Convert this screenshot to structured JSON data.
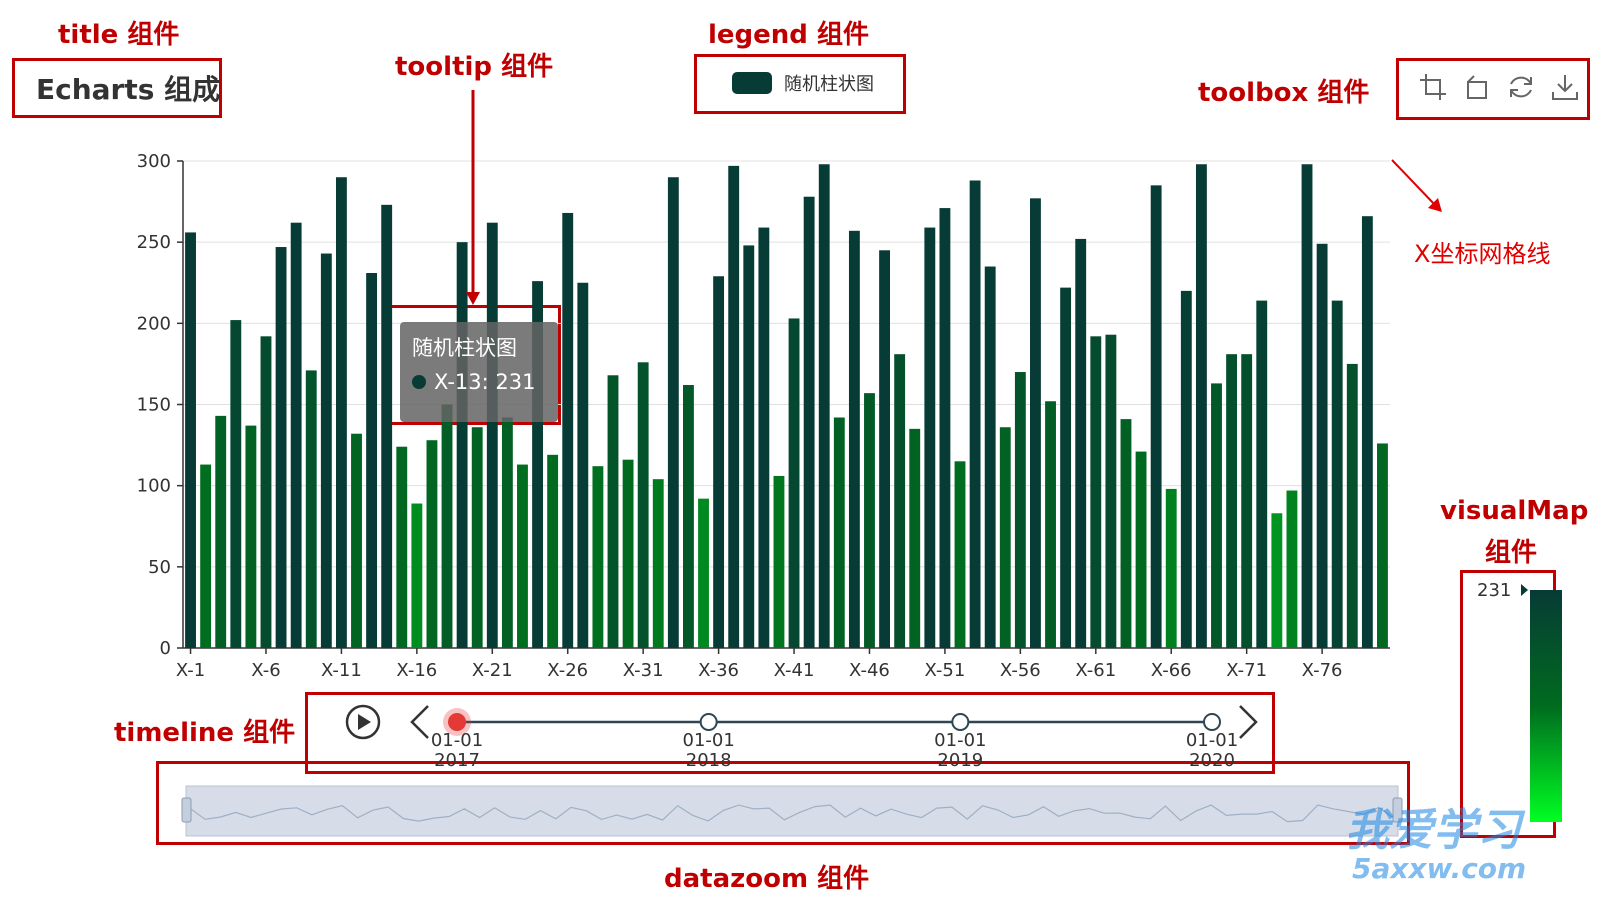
{
  "annotations": {
    "title": "title 组件",
    "legend": "legend 组件",
    "tooltip": "tooltip 组件",
    "toolbox": "toolbox 组件",
    "grid": "X坐标网格线",
    "timeline": "timeline 组件",
    "datazoom": "datazoom 组件",
    "visualmap_line1": "visualMap",
    "visualmap_line2": "组件"
  },
  "chart_title": "Echarts 组成",
  "legend": {
    "label": "随机柱状图",
    "color": "#073b36"
  },
  "toolbox": {
    "icons": [
      "data-zoom-icon",
      "zoom-reset-icon",
      "restore-icon",
      "save-image-icon"
    ]
  },
  "tooltip": {
    "title": "随机柱状图",
    "line": "X-13: 231"
  },
  "timeline": {
    "items": [
      {
        "date": "01-01",
        "year": "2017",
        "active": true
      },
      {
        "date": "01-01",
        "year": "2018",
        "active": false
      },
      {
        "date": "01-01",
        "year": "2019",
        "active": false
      },
      {
        "date": "01-01",
        "year": "2020",
        "active": false
      }
    ],
    "active_color": "#e53935"
  },
  "visualmap": {
    "max_label": "231",
    "color_high": "#073b36",
    "color_low": "#00ff22"
  },
  "watermark": {
    "line1": "我爱学习",
    "line2": "5axxw.com"
  },
  "chart_data": {
    "type": "bar",
    "title": "Echarts 组成",
    "legend": [
      "随机柱状图"
    ],
    "legend_position": "top-center",
    "ylim": [
      0,
      300
    ],
    "yticks": [
      0,
      50,
      100,
      150,
      200,
      250,
      300
    ],
    "xtick_labels": [
      "X-1",
      "X-6",
      "X-11",
      "X-16",
      "X-21",
      "X-26",
      "X-31",
      "X-36",
      "X-41",
      "X-46",
      "X-51",
      "X-56",
      "X-61",
      "X-66",
      "X-71",
      "X-76"
    ],
    "grid": true,
    "visualmap_range": [
      0,
      231
    ],
    "series": [
      {
        "name": "随机柱状图",
        "values": [
          256,
          113,
          143,
          202,
          137,
          192,
          247,
          262,
          171,
          243,
          290,
          132,
          231,
          273,
          124,
          89,
          128,
          150,
          250,
          136,
          262,
          142,
          113,
          226,
          119,
          268,
          225,
          112,
          168,
          116,
          176,
          104,
          290,
          162,
          92,
          229,
          297,
          248,
          259,
          106,
          203,
          278,
          298,
          142,
          257,
          157,
          245,
          181,
          135,
          259,
          271,
          115,
          288,
          235,
          136,
          170,
          277,
          152,
          222,
          252,
          192,
          193,
          141,
          121,
          285,
          98,
          220,
          298,
          163,
          181,
          181,
          214,
          83,
          97,
          298,
          249,
          214,
          175,
          266,
          126
        ]
      }
    ]
  }
}
